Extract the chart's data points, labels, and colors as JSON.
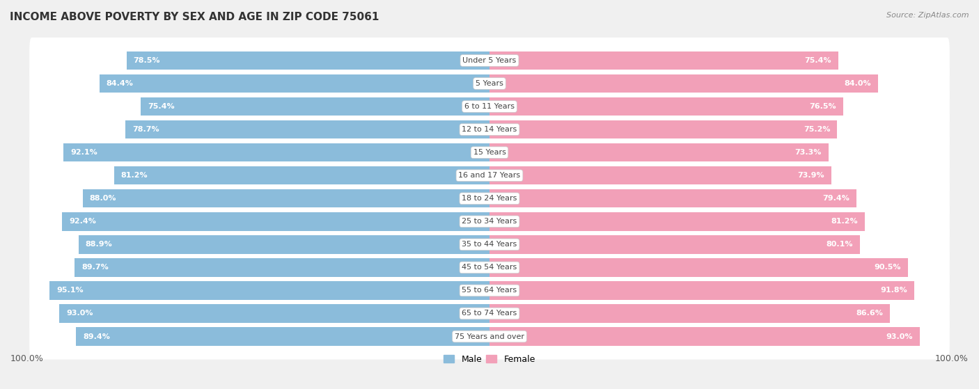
{
  "title": "INCOME ABOVE POVERTY BY SEX AND AGE IN ZIP CODE 75061",
  "source": "Source: ZipAtlas.com",
  "categories": [
    "Under 5 Years",
    "5 Years",
    "6 to 11 Years",
    "12 to 14 Years",
    "15 Years",
    "16 and 17 Years",
    "18 to 24 Years",
    "25 to 34 Years",
    "35 to 44 Years",
    "45 to 54 Years",
    "55 to 64 Years",
    "65 to 74 Years",
    "75 Years and over"
  ],
  "male_values": [
    78.5,
    84.4,
    75.4,
    78.7,
    92.1,
    81.2,
    88.0,
    92.4,
    88.9,
    89.7,
    95.1,
    93.0,
    89.4
  ],
  "female_values": [
    75.4,
    84.0,
    76.5,
    75.2,
    73.3,
    73.9,
    79.4,
    81.2,
    80.1,
    90.5,
    91.8,
    86.6,
    93.0
  ],
  "male_color": "#8bbcdb",
  "female_color": "#f2a0b8",
  "bg_color": "#f0f0f0",
  "row_bg_color": "#ffffff",
  "title_fontsize": 11,
  "source_fontsize": 8,
  "value_fontsize": 8,
  "legend_fontsize": 9,
  "category_fontsize": 8
}
